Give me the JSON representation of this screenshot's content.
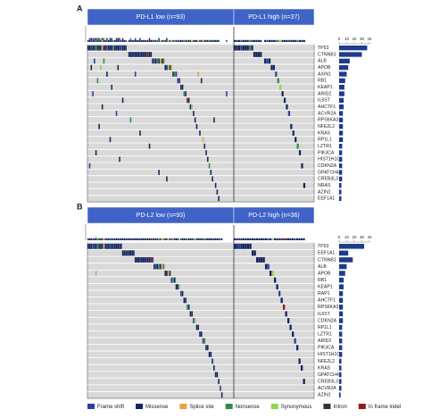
{
  "panels": [
    {
      "label": "A",
      "groups": [
        {
          "label": "PD-L1 low (n=93)",
          "n": 93
        },
        {
          "label": "PD-L1 high (n=37)",
          "n": 37
        }
      ],
      "genes": [
        "TP53",
        "CTNNB1",
        "ALB",
        "APOB",
        "AXIN1",
        "RB1",
        "KEAP1",
        "ARID2",
        "IL6ST",
        "AHCTF1",
        "ACVR2A",
        "RPS6KA3",
        "NFE2L2",
        "KRAS",
        "RP1L1",
        "LZTR1",
        "PIK3CA",
        "HIST1H1C",
        "CDKN2A",
        "GPATCH4",
        "CREB3L3",
        "NRAS",
        "AZIN1",
        "EEF1A1"
      ],
      "gene_counts": [
        37,
        30,
        14,
        12,
        10,
        8,
        7,
        7,
        6,
        6,
        5,
        5,
        5,
        5,
        5,
        4,
        4,
        4,
        4,
        4,
        4,
        3,
        3,
        3
      ],
      "xlim": [
        0,
        40
      ],
      "xticks": [
        0,
        10,
        20,
        30,
        40
      ],
      "mutations": [
        [
          [
            0,
            1
          ],
          [
            1,
            1
          ],
          [
            2,
            0
          ],
          [
            3,
            1
          ],
          [
            4,
            1
          ],
          [
            5,
            3
          ],
          [
            6,
            1
          ],
          [
            7,
            1
          ],
          [
            8,
            1
          ],
          [
            9,
            2
          ],
          [
            10,
            1
          ],
          [
            11,
            1
          ],
          [
            12,
            0
          ],
          [
            13,
            1
          ],
          [
            14,
            1
          ],
          [
            15,
            1
          ],
          [
            16,
            3
          ],
          [
            17,
            1
          ],
          [
            18,
            1
          ],
          [
            19,
            1
          ],
          [
            20,
            1
          ],
          [
            21,
            0
          ],
          [
            22,
            1
          ],
          [
            23,
            1
          ],
          [
            24,
            1
          ],
          [
            93,
            1
          ],
          [
            94,
            1
          ],
          [
            95,
            1
          ],
          [
            96,
            0
          ],
          [
            97,
            1
          ],
          [
            98,
            1
          ],
          [
            99,
            1
          ],
          [
            100,
            3
          ],
          [
            101,
            1
          ]
        ],
        [
          [
            26,
            1
          ],
          [
            27,
            1
          ],
          [
            28,
            1
          ],
          [
            29,
            1
          ],
          [
            30,
            1
          ],
          [
            31,
            1
          ],
          [
            32,
            1
          ],
          [
            33,
            1
          ],
          [
            34,
            1
          ],
          [
            35,
            1
          ],
          [
            36,
            1
          ],
          [
            37,
            1
          ],
          [
            38,
            6
          ],
          [
            39,
            1
          ],
          [
            40,
            1
          ],
          [
            102,
            1
          ],
          [
            103,
            1
          ],
          [
            104,
            1
          ],
          [
            105,
            1
          ]
        ],
        [
          [
            4,
            0
          ],
          [
            10,
            3
          ],
          [
            41,
            1
          ],
          [
            42,
            0
          ],
          [
            43,
            1
          ],
          [
            44,
            3
          ],
          [
            45,
            1
          ],
          [
            46,
            2
          ],
          [
            47,
            1
          ],
          [
            48,
            3
          ],
          [
            107,
            1
          ],
          [
            108,
            0
          ],
          [
            109,
            1
          ]
        ],
        [
          [
            2,
            1
          ],
          [
            8,
            4
          ],
          [
            19,
            1
          ],
          [
            49,
            1
          ],
          [
            50,
            1
          ],
          [
            51,
            4
          ],
          [
            52,
            1
          ],
          [
            53,
            2
          ],
          [
            110,
            1
          ],
          [
            111,
            1
          ]
        ],
        [
          [
            12,
            1
          ],
          [
            30,
            0
          ],
          [
            54,
            1
          ],
          [
            55,
            3
          ],
          [
            56,
            0
          ],
          [
            70,
            2
          ],
          [
            112,
            0
          ]
        ],
        [
          [
            6,
            3
          ],
          [
            57,
            0
          ],
          [
            58,
            1
          ],
          [
            72,
            1
          ],
          [
            113,
            3
          ]
        ],
        [
          [
            15,
            1
          ],
          [
            59,
            1
          ],
          [
            60,
            1
          ],
          [
            114,
            4
          ]
        ],
        [
          [
            3,
            0
          ],
          [
            61,
            3
          ],
          [
            62,
            1
          ],
          [
            88,
            0
          ],
          [
            115,
            1
          ]
        ],
        [
          [
            22,
            1
          ],
          [
            63,
            6
          ],
          [
            64,
            1
          ],
          [
            116,
            1
          ]
        ],
        [
          [
            9,
            1
          ],
          [
            65,
            1
          ],
          [
            66,
            4
          ],
          [
            117,
            1
          ]
        ],
        [
          [
            18,
            0
          ],
          [
            67,
            1
          ],
          [
            118,
            0
          ]
        ],
        [
          [
            27,
            3
          ],
          [
            68,
            1
          ],
          [
            80,
            1
          ]
        ],
        [
          [
            7,
            1
          ],
          [
            69,
            1
          ],
          [
            119,
            1
          ]
        ],
        [
          [
            33,
            1
          ],
          [
            71,
            1
          ],
          [
            120,
            1
          ]
        ],
        [
          [
            14,
            1
          ],
          [
            73,
            2
          ],
          [
            121,
            1
          ]
        ],
        [
          [
            39,
            1
          ],
          [
            74,
            1
          ],
          [
            122,
            3
          ]
        ],
        [
          [
            5,
            1
          ],
          [
            75,
            1
          ],
          [
            123,
            1
          ]
        ],
        [
          [
            20,
            1
          ],
          [
            76,
            1
          ]
        ],
        [
          [
            1,
            0
          ],
          [
            77,
            3
          ],
          [
            124,
            1
          ]
        ],
        [
          [
            45,
            1
          ],
          [
            78,
            1
          ]
        ],
        [
          [
            50,
            1
          ],
          [
            79,
            1
          ]
        ],
        [
          [
            81,
            1
          ],
          [
            125,
            1
          ]
        ],
        [
          [
            82,
            1
          ]
        ],
        [
          [
            83,
            1
          ]
        ]
      ]
    },
    {
      "label": "B",
      "groups": [
        {
          "label": "PD-L2 low (n=93)",
          "n": 93
        },
        {
          "label": "PD-L2 high (n=36)",
          "n": 36
        }
      ],
      "genes": [
        "TP53",
        "EEF1A1",
        "CTNNB1",
        "ALB",
        "APOB",
        "RB1",
        "KEAP1",
        "RAP1",
        "AHCTF1",
        "RPS6KA3",
        "IL6ST",
        "CDKN2A",
        "RP1L1",
        "LZTR1",
        "ARID2",
        "PIK3CA",
        "HIST1H1C",
        "NFE2L2",
        "KRAS",
        "GPATCH4",
        "CREB3L3",
        "ACVR2A",
        "AZIN1"
      ],
      "gene_counts": [
        33,
        12,
        18,
        10,
        8,
        6,
        6,
        5,
        5,
        5,
        5,
        5,
        4,
        4,
        4,
        4,
        4,
        3,
        3,
        3,
        3,
        3,
        2
      ],
      "xlim": [
        0,
        40
      ],
      "xticks": [
        0,
        10,
        20,
        30,
        40
      ],
      "mutations": [
        [
          [
            0,
            1
          ],
          [
            1,
            1
          ],
          [
            2,
            1
          ],
          [
            3,
            0
          ],
          [
            4,
            1
          ],
          [
            5,
            1
          ],
          [
            6,
            3
          ],
          [
            7,
            1
          ],
          [
            8,
            1
          ],
          [
            9,
            1
          ],
          [
            10,
            2
          ],
          [
            11,
            1
          ],
          [
            12,
            1
          ],
          [
            13,
            1
          ],
          [
            14,
            0
          ],
          [
            15,
            1
          ],
          [
            16,
            1
          ],
          [
            17,
            1
          ],
          [
            18,
            1
          ],
          [
            19,
            1
          ],
          [
            20,
            1
          ],
          [
            21,
            1
          ],
          [
            93,
            1
          ],
          [
            94,
            1
          ],
          [
            95,
            0
          ],
          [
            96,
            1
          ],
          [
            97,
            1
          ],
          [
            98,
            1
          ],
          [
            99,
            1
          ],
          [
            100,
            1
          ]
        ],
        [
          [
            22,
            1
          ],
          [
            23,
            1
          ],
          [
            24,
            1
          ],
          [
            25,
            1
          ],
          [
            26,
            1
          ],
          [
            27,
            1
          ],
          [
            28,
            1
          ],
          [
            29,
            1
          ],
          [
            101,
            1
          ],
          [
            102,
            1
          ]
        ],
        [
          [
            30,
            1
          ],
          [
            31,
            1
          ],
          [
            32,
            1
          ],
          [
            33,
            1
          ],
          [
            34,
            1
          ],
          [
            35,
            1
          ],
          [
            36,
            1
          ],
          [
            37,
            1
          ],
          [
            38,
            1
          ],
          [
            39,
            1
          ],
          [
            40,
            6
          ],
          [
            41,
            1
          ],
          [
            103,
            1
          ],
          [
            104,
            1
          ],
          [
            105,
            1
          ],
          [
            106,
            1
          ]
        ],
        [
          [
            42,
            1
          ],
          [
            43,
            0
          ],
          [
            44,
            1
          ],
          [
            45,
            3
          ],
          [
            46,
            1
          ],
          [
            47,
            2
          ],
          [
            48,
            3
          ],
          [
            107,
            1
          ],
          [
            108,
            0
          ]
        ],
        [
          [
            5,
            4
          ],
          [
            49,
            1
          ],
          [
            50,
            1
          ],
          [
            51,
            2
          ],
          [
            52,
            1
          ],
          [
            109,
            1
          ],
          [
            110,
            4
          ]
        ],
        [
          [
            53,
            0
          ],
          [
            54,
            3
          ],
          [
            55,
            1
          ],
          [
            111,
            1
          ]
        ],
        [
          [
            56,
            1
          ],
          [
            57,
            1
          ],
          [
            58,
            4
          ],
          [
            112,
            1
          ]
        ],
        [
          [
            59,
            0
          ],
          [
            60,
            1
          ],
          [
            113,
            0
          ]
        ],
        [
          [
            61,
            1
          ],
          [
            62,
            1
          ],
          [
            114,
            1
          ]
        ],
        [
          [
            63,
            3
          ],
          [
            64,
            1
          ],
          [
            115,
            6
          ]
        ],
        [
          [
            65,
            1
          ],
          [
            66,
            1
          ],
          [
            116,
            1
          ]
        ],
        [
          [
            67,
            0
          ],
          [
            68,
            4
          ],
          [
            117,
            1
          ]
        ],
        [
          [
            69,
            1
          ],
          [
            70,
            1
          ],
          [
            118,
            1
          ]
        ],
        [
          [
            71,
            1
          ],
          [
            72,
            1
          ],
          [
            119,
            1
          ]
        ],
        [
          [
            73,
            0
          ],
          [
            74,
            3
          ],
          [
            120,
            0
          ]
        ],
        [
          [
            75,
            1
          ],
          [
            76,
            1
          ],
          [
            121,
            1
          ]
        ],
        [
          [
            77,
            1
          ],
          [
            78,
            1
          ]
        ],
        [
          [
            79,
            1
          ],
          [
            122,
            1
          ]
        ],
        [
          [
            80,
            1
          ],
          [
            123,
            1
          ]
        ],
        [
          [
            81,
            1
          ],
          [
            82,
            1
          ]
        ],
        [
          [
            83,
            1
          ],
          [
            124,
            1
          ]
        ],
        [
          [
            84,
            0
          ]
        ],
        [
          [
            85,
            1
          ]
        ]
      ]
    }
  ],
  "legend": [
    {
      "label": "Frame shift",
      "color": "#2b3f9e"
    },
    {
      "label": "Missense",
      "color": "#16245e"
    },
    {
      "label": "Splice site",
      "color": "#e9a43a"
    },
    {
      "label": "Nonsense",
      "color": "#2e8b4a"
    },
    {
      "label": "Synonymous",
      "color": "#93d34e"
    },
    {
      "label": "Intron",
      "color": "#333333"
    },
    {
      "label": "In frame indel",
      "color": "#8e1b1b"
    }
  ]
}
